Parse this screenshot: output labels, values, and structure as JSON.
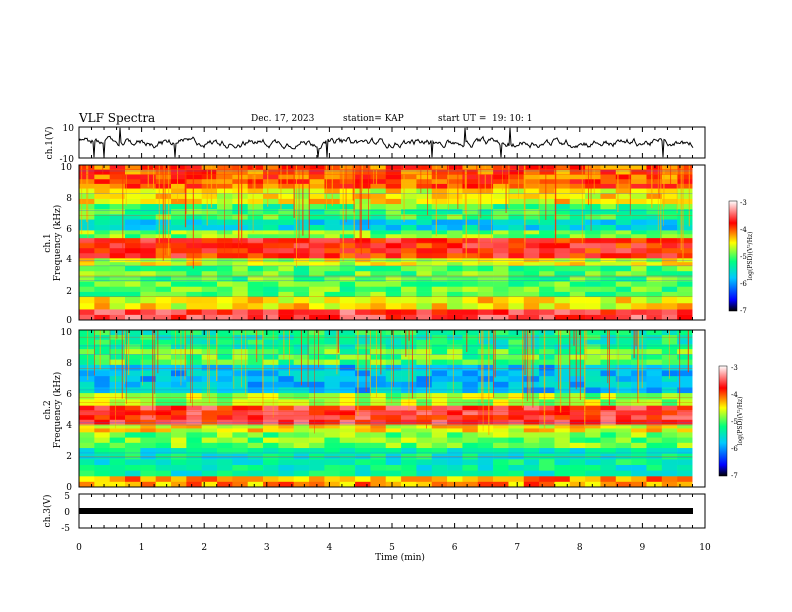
{
  "header": {
    "title": "VLF Spectra",
    "date": "Dec. 17, 2023",
    "station": "station= KAP",
    "start_label": "start  UT =",
    "start_time": "19: 10: 1"
  },
  "colors": {
    "waveform": "#000000",
    "colormap": [
      "#000000",
      "#0000ff",
      "#00c8ff",
      "#00ff80",
      "#ffff00",
      "#ff0000",
      "#ffffff"
    ]
  },
  "chart_data": [
    {
      "type": "line",
      "name": "ch1-waveform",
      "ylabel": "ch.1(V)",
      "ylim": [
        -10,
        10
      ],
      "y_ticks": [
        "10",
        "-10"
      ],
      "xlim": [
        0,
        10
      ],
      "x_unit": "min",
      "amplitude_range": [
        -4,
        4
      ]
    },
    {
      "type": "heatmap",
      "name": "ch1-spectrogram",
      "channel_label": "ch.1",
      "ylabel": "Frequency (kHz)",
      "ylim": [
        0,
        10
      ],
      "y_ticks": [
        "0",
        "2",
        "4",
        "6",
        "8",
        "10"
      ],
      "xlim": [
        0,
        10
      ],
      "colorbar": {
        "label": "log(PSD)(V²/Hz)",
        "ticks": [
          "-3",
          "-4",
          "-5",
          "-6",
          "-7"
        ],
        "range": [
          -7,
          -3
        ]
      },
      "bands_khz": [
        {
          "from": 0,
          "to": 0.7,
          "level": -3.6
        },
        {
          "from": 0.7,
          "to": 1.5,
          "level": -4.5
        },
        {
          "from": 1.5,
          "to": 3.5,
          "level": -5.0
        },
        {
          "from": 3.5,
          "to": 4.0,
          "level": -4.6
        },
        {
          "from": 4.0,
          "to": 5.3,
          "level": -3.8
        },
        {
          "from": 5.3,
          "to": 5.8,
          "level": -4.9
        },
        {
          "from": 5.8,
          "to": 6.5,
          "level": -5.6
        },
        {
          "from": 6.5,
          "to": 7.5,
          "level": -5.1
        },
        {
          "from": 7.5,
          "to": 8.5,
          "level": -4.5
        },
        {
          "from": 8.5,
          "to": 10,
          "level": -4.0
        }
      ]
    },
    {
      "type": "heatmap",
      "name": "ch2-spectrogram",
      "channel_label": "ch.2",
      "ylabel": "Frequency (kHz)",
      "ylim": [
        0,
        10
      ],
      "y_ticks": [
        "0",
        "2",
        "4",
        "6",
        "8",
        "10"
      ],
      "xlim": [
        0,
        10
      ],
      "colorbar": {
        "label": "log(PSD)(V²/Hz)",
        "ticks": [
          "-3",
          "-4",
          "-5",
          "-6",
          "-7"
        ],
        "range": [
          -7,
          -3
        ]
      },
      "bands_khz": [
        {
          "from": 0,
          "to": 0.7,
          "level": -4.2
        },
        {
          "from": 0.7,
          "to": 2.5,
          "level": -5.4
        },
        {
          "from": 2.5,
          "to": 3.5,
          "level": -4.9
        },
        {
          "from": 3.5,
          "to": 4.0,
          "level": -4.5
        },
        {
          "from": 4.0,
          "to": 5.2,
          "level": -3.7
        },
        {
          "from": 5.2,
          "to": 6.0,
          "level": -4.8
        },
        {
          "from": 6.0,
          "to": 7.8,
          "level": -5.8
        },
        {
          "from": 7.8,
          "to": 8.8,
          "level": -5.0
        },
        {
          "from": 8.8,
          "to": 10,
          "level": -5.3
        }
      ]
    },
    {
      "type": "line",
      "name": "ch3-waveform",
      "ylabel": "ch.3(V)",
      "ylim": [
        -5,
        5
      ],
      "y_ticks": [
        "5",
        "0",
        "-5"
      ],
      "xlim": [
        0,
        10
      ],
      "amplitude_range": [
        -0.4,
        0.4
      ]
    }
  ],
  "x_axis": {
    "label": "Time (min)",
    "ticks": [
      "0",
      "1",
      "2",
      "3",
      "4",
      "5",
      "6",
      "7",
      "8",
      "9",
      "10"
    ]
  }
}
